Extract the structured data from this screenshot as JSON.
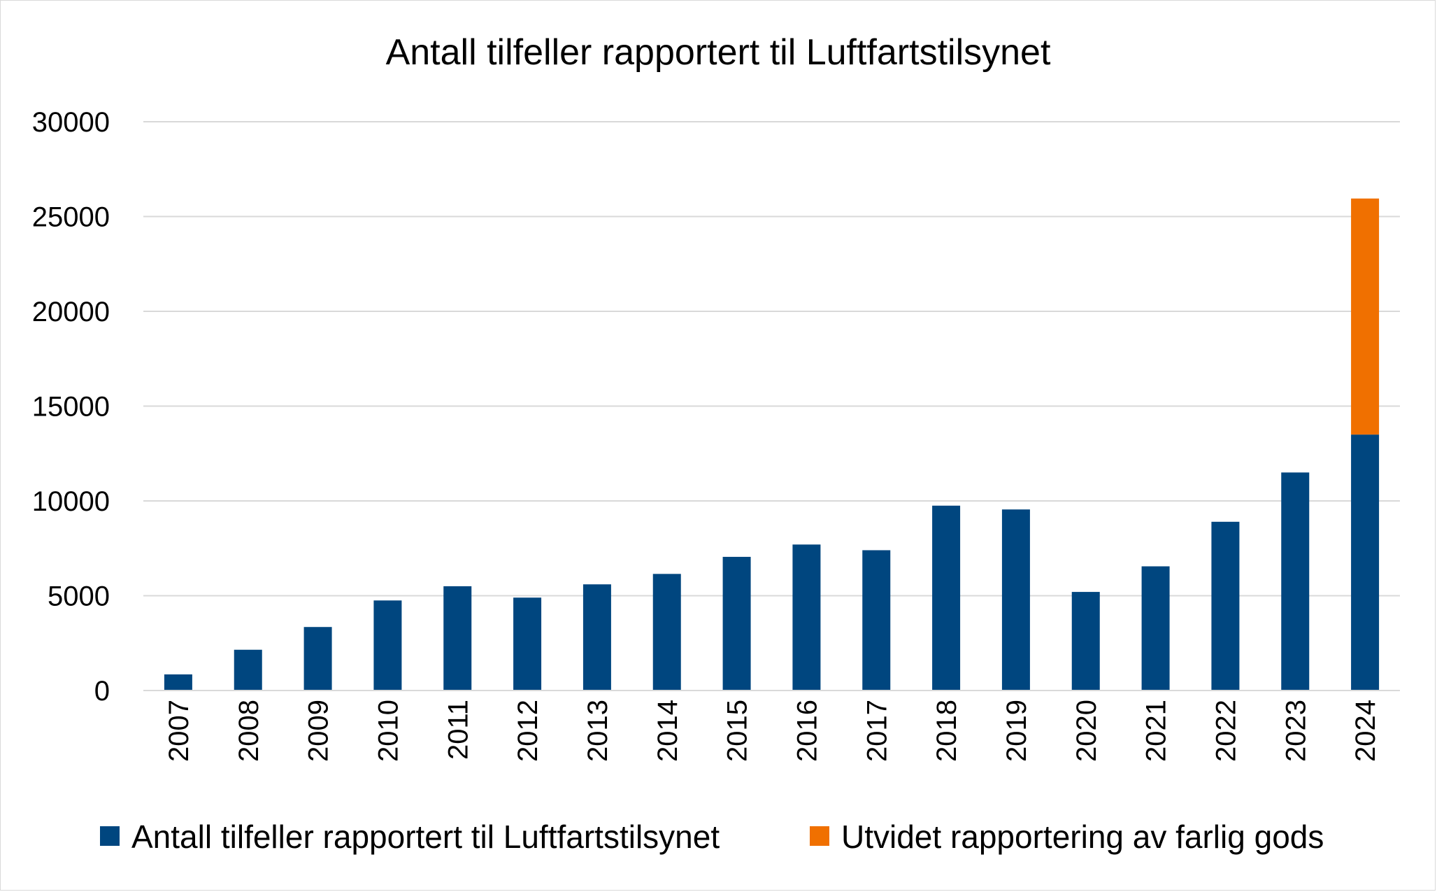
{
  "chart_data": {
    "type": "bar",
    "stacked": true,
    "title": "Antall tilfeller rapportert til Luftfartstilsynet",
    "xlabel": "",
    "ylabel": "",
    "categories": [
      "2007",
      "2008",
      "2009",
      "2010",
      "2011",
      "2012",
      "2013",
      "2014",
      "2015",
      "2016",
      "2017",
      "2018",
      "2019",
      "2020",
      "2021",
      "2022",
      "2023",
      "2024"
    ],
    "series": [
      {
        "name": "Antall tilfeller rapportert til Luftfartstilsynet",
        "color": "#00467f",
        "values": [
          850,
          2150,
          3350,
          4750,
          5500,
          4900,
          5600,
          6150,
          7050,
          7700,
          7400,
          9750,
          9550,
          5200,
          6550,
          8900,
          11500,
          13500
        ]
      },
      {
        "name": "Utvidet rapportering av farlig gods",
        "color": "#f07000",
        "values": [
          0,
          0,
          0,
          0,
          0,
          0,
          0,
          0,
          0,
          0,
          0,
          0,
          0,
          0,
          0,
          0,
          0,
          12450
        ]
      }
    ],
    "ylim": [
      0,
      30000
    ],
    "yticks": [
      0,
      5000,
      10000,
      15000,
      20000,
      25000,
      30000
    ],
    "grid": true,
    "legend_position": "bottom",
    "xtick_rotation": "vertical"
  }
}
